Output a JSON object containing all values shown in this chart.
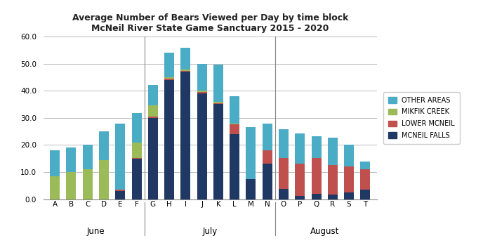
{
  "categories": [
    "A",
    "B",
    "C",
    "D",
    "E",
    "F",
    "G",
    "H",
    "I",
    "J",
    "K",
    "L",
    "M",
    "N",
    "O",
    "P",
    "Q",
    "R",
    "S",
    "T"
  ],
  "months": [
    {
      "label": "June",
      "positions": [
        0,
        1,
        2,
        3,
        4,
        5
      ],
      "sep_after": 5.5
    },
    {
      "label": "July",
      "positions": [
        6,
        7,
        8,
        9,
        10,
        11,
        12,
        13
      ],
      "sep_after": 13.5
    },
    {
      "label": "August",
      "positions": [
        14,
        15,
        16,
        17,
        18,
        19
      ],
      "sep_after": null
    }
  ],
  "mcneil_falls": [
    0,
    0,
    0,
    0,
    3,
    15,
    30,
    44,
    47,
    39,
    35,
    24,
    7.5,
    13,
    3.8,
    1.2,
    2.1,
    1.7,
    2.5,
    3.5
  ],
  "lower_mcneil": [
    0,
    0,
    0,
    0,
    0.5,
    0.3,
    0.5,
    0.5,
    0.3,
    0.5,
    0.5,
    3.5,
    0,
    5,
    11.5,
    12,
    13,
    11,
    9.5,
    7.5
  ],
  "mikfik_creek": [
    8.5,
    10,
    11,
    14.5,
    0,
    5.5,
    4,
    0.5,
    0.5,
    0.5,
    0.5,
    0.5,
    0,
    0,
    0,
    0,
    0,
    0,
    0,
    0
  ],
  "other_areas": [
    9.5,
    9,
    9,
    10.5,
    24.5,
    11,
    7.5,
    9,
    8,
    10,
    13.5,
    10,
    19,
    10,
    10.5,
    11,
    8,
    10,
    8,
    3
  ],
  "colors": {
    "mcneil_falls": "#1f3864",
    "lower_mcneil": "#c0504d",
    "mikfik_creek": "#9bbb59",
    "other_areas": "#4bacc6"
  },
  "title_line1": "Average Number of Bears Viewed per Day by time block",
  "title_line2": "McNeil River State Game Sanctuary 2015 - 2020",
  "ylim": [
    0,
    60
  ],
  "yticks": [
    0,
    10,
    20,
    30,
    40,
    50,
    60
  ],
  "bar_width": 0.6,
  "background_color": "#ffffff",
  "grid_color": "#bbbbbb",
  "spine_color": "#888888"
}
